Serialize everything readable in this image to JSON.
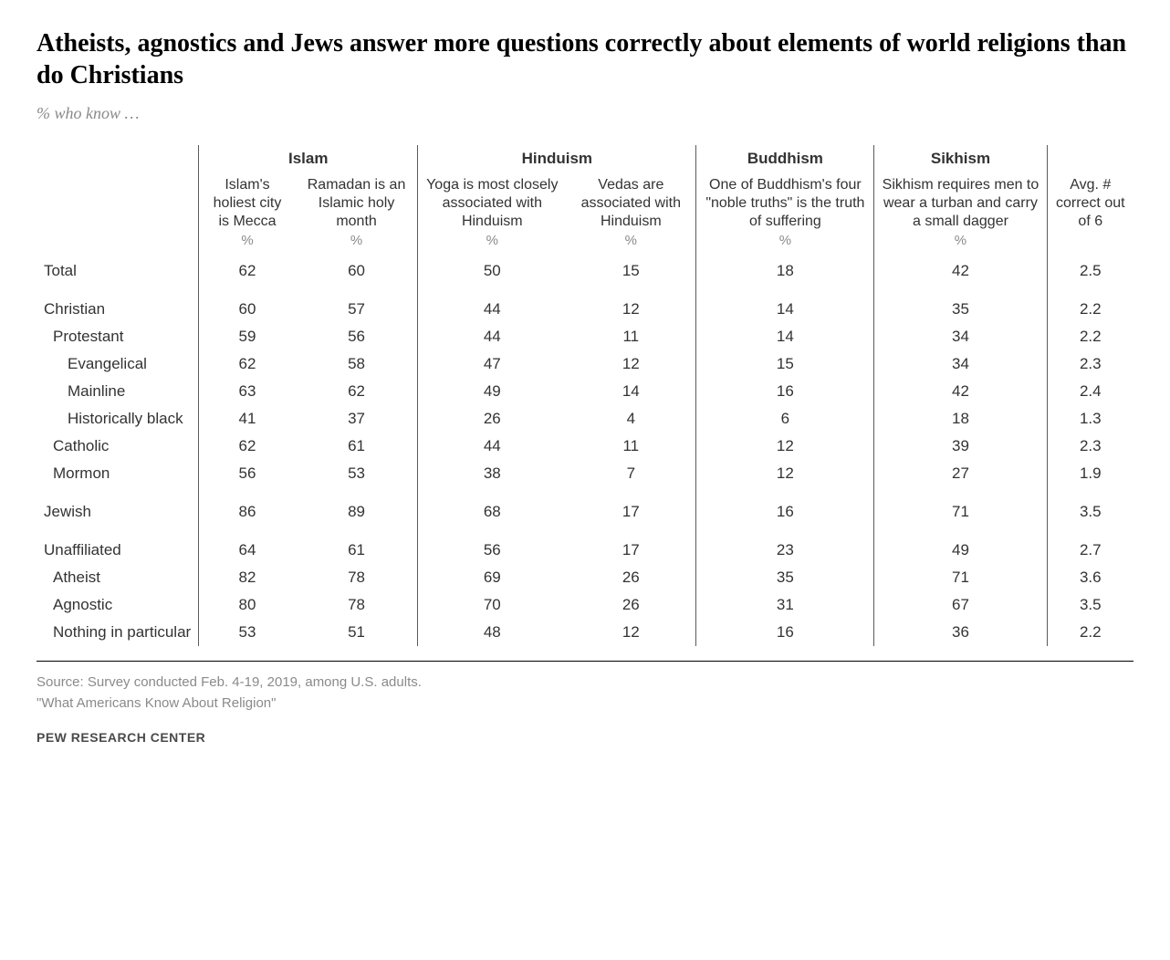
{
  "title": "Atheists, agnostics and Jews answer more questions correctly about elements of world religions than do Christians",
  "subtitle": "% who know …",
  "group_headers": {
    "islam": "Islam",
    "hinduism": "Hinduism",
    "buddhism": "Buddhism",
    "sikhism": "Sikhism"
  },
  "col_headers": {
    "c1": "Islam's holiest city is Mecca",
    "c2": "Ramadan is an Islamic holy month",
    "c3": "Yoga is most closely associated with Hinduism",
    "c4": "Vedas are associated with Hinduism",
    "c5": "One of Buddhism's four \"noble truths\" is the truth of suffering",
    "c6": "Sikhism requires men to wear a turban and carry a small dagger",
    "avg": "Avg. # correct out of 6"
  },
  "pct_label": "%",
  "rows": [
    {
      "label": "Total",
      "indent": 0,
      "v": [
        62,
        60,
        50,
        15,
        18,
        42,
        "2.5"
      ]
    },
    {
      "label": "Christian",
      "indent": 0,
      "v": [
        60,
        57,
        44,
        12,
        14,
        35,
        "2.2"
      ]
    },
    {
      "label": "Protestant",
      "indent": 1,
      "v": [
        59,
        56,
        44,
        11,
        14,
        34,
        "2.2"
      ]
    },
    {
      "label": "Evangelical",
      "indent": 2,
      "v": [
        62,
        58,
        47,
        12,
        15,
        34,
        "2.3"
      ]
    },
    {
      "label": "Mainline",
      "indent": 2,
      "v": [
        63,
        62,
        49,
        14,
        16,
        42,
        "2.4"
      ]
    },
    {
      "label": "Historically black",
      "indent": 2,
      "v": [
        41,
        37,
        26,
        4,
        6,
        18,
        "1.3"
      ]
    },
    {
      "label": "Catholic",
      "indent": 1,
      "v": [
        62,
        61,
        44,
        11,
        12,
        39,
        "2.3"
      ]
    },
    {
      "label": "Mormon",
      "indent": 1,
      "v": [
        56,
        53,
        38,
        7,
        12,
        27,
        "1.9"
      ]
    },
    {
      "label": "Jewish",
      "indent": 0,
      "v": [
        86,
        89,
        68,
        17,
        16,
        71,
        "3.5"
      ]
    },
    {
      "label": "Unaffiliated",
      "indent": 0,
      "v": [
        64,
        61,
        56,
        17,
        23,
        49,
        "2.7"
      ]
    },
    {
      "label": "Atheist",
      "indent": 1,
      "v": [
        82,
        78,
        69,
        26,
        35,
        71,
        "3.6"
      ]
    },
    {
      "label": "Agnostic",
      "indent": 1,
      "v": [
        80,
        78,
        70,
        26,
        31,
        67,
        "3.5"
      ]
    },
    {
      "label": "Nothing in particular",
      "indent": 1,
      "v": [
        53,
        51,
        48,
        12,
        16,
        36,
        "2.2"
      ]
    }
  ],
  "spacer_after": [
    0,
    7,
    8
  ],
  "footer": {
    "line1": "Source: Survey conducted Feb. 4-19, 2019, among U.S. adults.",
    "line2": "\"What Americans Know About Religion\"",
    "brand": "PEW RESEARCH CENTER"
  },
  "style": {
    "text_color": "#333333",
    "muted_color": "#8a8a8a",
    "sep_color": "#5a5a5a",
    "bg": "#ffffff"
  }
}
